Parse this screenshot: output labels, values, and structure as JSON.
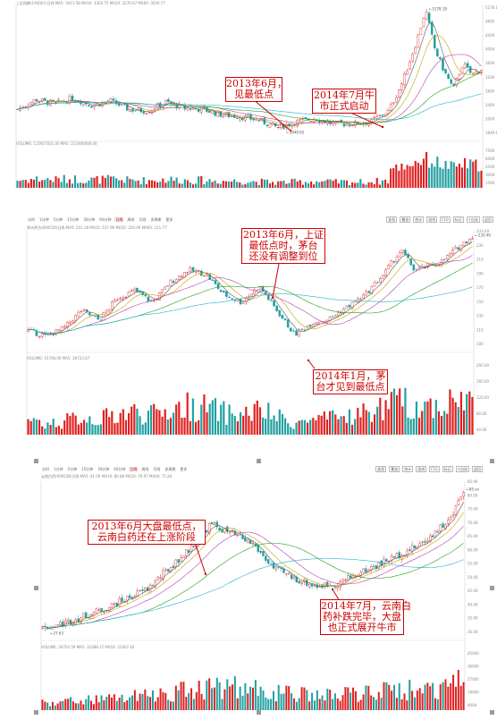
{
  "colors": {
    "up": "#e02020",
    "down": "#22a0a0",
    "ma_white": "#555555",
    "ma_yellow": "#c8a000",
    "ma_purple": "#b040b0",
    "ma_green": "#20a020",
    "ma_cyan": "#20b0d0",
    "annotation_border": "#cc0000",
    "annotation_text": "#cc0000",
    "axis_text": "#888888"
  },
  "panels": [
    {
      "id": "index",
      "header": "上证指数(1A0001)日线 MA5: 3411.58  MA10: 3303.75  MA20: 3276.67  MA60: 3030.77",
      "volume_header": "VOLUME: 115927031.00  MA5: 213300000.00",
      "toolbar": [],
      "right_buttons": [],
      "y_ticks": [
        "5178.19",
        "4800",
        "4400",
        "4000",
        "3600",
        "3200",
        "2800",
        "2400",
        "2000",
        "1849.65"
      ],
      "vol_ticks": [
        "7500",
        "6000",
        "4500",
        "3000",
        "1500"
      ],
      "peak_label": "5178.19",
      "low_label": "1849.65",
      "annotations": [
        {
          "text": "2013年6月，\n见最低点"
        },
        {
          "text": "2014年7月牛\n市正式启动"
        }
      ]
    },
    {
      "id": "maotai",
      "header": "贵州茅台(600519)日线 MA5: 231.18  MA10: 227.96  MA20: 224.09  MA60: 211.77",
      "volume_header": "VOLUME: 15708.00  MA5: 26723.67",
      "toolbar": [
        "分时",
        "1分钟",
        "5分钟",
        "15分钟",
        "30分钟",
        "60分钟",
        "日线",
        "周线",
        "月线",
        "多周期",
        "更多"
      ],
      "right_buttons": [
        "复权",
        "叠加",
        "统计",
        "画线",
        "F10",
        "标记",
        "+自选",
        "返回"
      ],
      "y_ticks": [
        "233.49",
        "230",
        "210",
        "190",
        "170",
        "150",
        "130",
        "110",
        "100"
      ],
      "vol_ticks": [
        "200.00",
        "160.00",
        "120.00",
        "80.00",
        "40.00"
      ],
      "peak_label": "233.49",
      "low_label": "",
      "annotations": [
        {
          "text": "2013年6月，上证\n最低点时，茅台\n还没有调整到位"
        },
        {
          "text": "2014年1月，茅\n台才见到最低点"
        }
      ]
    },
    {
      "id": "yunnan",
      "header": "云南白药(000538)日线 MA5: 81.00  MA10: 80.88  MA20: 76.97  MA60: 71.84",
      "volume_header": "VOLUME: 26703.59  MA5: 31088.17  MA10: 22407.83",
      "toolbar": [
        "分时",
        "1分钟",
        "5分钟",
        "15分钟",
        "30分钟",
        "60分钟",
        "日线",
        "周线",
        "月线",
        "多周期",
        "更多"
      ],
      "right_buttons": [
        "复权",
        "叠加",
        "统计",
        "画线",
        "F10",
        "标记",
        "+自选",
        "返回"
      ],
      "y_ticks": [
        "85.00",
        "80.00",
        "75.00",
        "70.00",
        "65.00",
        "60.00",
        "55.00",
        "50.00",
        "45.00",
        "40.00",
        "35.00",
        "30.00"
      ],
      "vol_ticks": [
        "45000",
        "36000",
        "27000",
        "18000",
        "9000"
      ],
      "peak_label": "85.xx",
      "low_label": "27.63",
      "annotations": [
        {
          "text": "2013年6月大盘最低点，\n云南白药还在上涨阶段"
        },
        {
          "text": "2014年7月，云南白\n药补跌完毕，大盘\n也正式展开牛市"
        }
      ]
    }
  ],
  "chart_data": [
    {
      "type": "line",
      "name": "上证指数",
      "x": [
        0,
        0.04,
        0.08,
        0.12,
        0.16,
        0.2,
        0.24,
        0.28,
        0.32,
        0.36,
        0.4,
        0.44,
        0.48,
        0.52,
        0.56,
        0.6,
        0.64,
        0.68,
        0.72,
        0.76,
        0.8,
        0.83,
        0.86,
        0.88,
        0.9,
        0.92,
        0.94,
        0.96,
        0.98,
        1.0
      ],
      "values": [
        2450,
        2720,
        2600,
        2750,
        2560,
        2680,
        2450,
        2400,
        2650,
        2480,
        2450,
        2300,
        2250,
        2150,
        1950,
        2100,
        2200,
        2050,
        2050,
        2100,
        2400,
        3200,
        4300,
        5178,
        4100,
        3500,
        3000,
        3700,
        3400,
        3560
      ],
      "ylim": [
        1849.65,
        5178.19
      ],
      "annotation_at": {
        "2013-06": 0.64,
        "2014-07": 0.8
      }
    },
    {
      "type": "line",
      "name": "贵州茅台",
      "x": [
        0,
        0.04,
        0.08,
        0.12,
        0.16,
        0.2,
        0.24,
        0.28,
        0.32,
        0.36,
        0.4,
        0.44,
        0.48,
        0.52,
        0.56,
        0.6,
        0.64,
        0.68,
        0.72,
        0.76,
        0.8,
        0.84,
        0.87,
        0.9,
        0.93,
        0.96,
        1.0
      ],
      "values": [
        115,
        108,
        118,
        140,
        128,
        155,
        165,
        150,
        175,
        190,
        185,
        160,
        150,
        170,
        140,
        110,
        125,
        130,
        145,
        160,
        185,
        215,
        190,
        195,
        200,
        215,
        232
      ],
      "ylim": [
        100,
        233.49
      ]
    },
    {
      "type": "line",
      "name": "云南白药",
      "x": [
        0,
        0.05,
        0.1,
        0.15,
        0.2,
        0.25,
        0.3,
        0.35,
        0.4,
        0.45,
        0.5,
        0.55,
        0.6,
        0.65,
        0.7,
        0.75,
        0.8,
        0.85,
        0.9,
        0.94,
        0.97,
        1.0
      ],
      "values": [
        28,
        30,
        33,
        36,
        40,
        44,
        52,
        60,
        70,
        66,
        62,
        52,
        48,
        45,
        46,
        50,
        54,
        58,
        62,
        68,
        72,
        84
      ],
      "ylim": [
        27.63,
        85
      ]
    }
  ]
}
